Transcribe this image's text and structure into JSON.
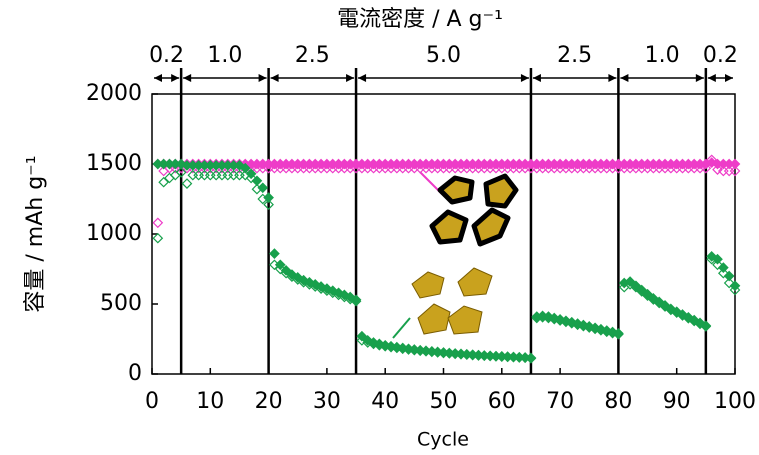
{
  "chart_data": {
    "type": "scatter",
    "title": "電流密度 / A g⁻¹",
    "x_label": "Cycle",
    "y_label": "容量 / mAh g⁻¹",
    "xlim": [
      0,
      100
    ],
    "xticks": [
      0,
      10,
      20,
      30,
      40,
      50,
      60,
      70,
      80,
      90,
      100
    ],
    "ylim": [
      0,
      2000
    ],
    "yticks": [
      0,
      500,
      1000,
      1500,
      2000
    ],
    "regions": [
      {
        "label": "0.2",
        "start": 0,
        "end": 5
      },
      {
        "label": "1.0",
        "start": 5,
        "end": 20
      },
      {
        "label": "2.5",
        "start": 20,
        "end": 35
      },
      {
        "label": "5.0",
        "start": 35,
        "end": 65
      },
      {
        "label": "2.5",
        "start": 65,
        "end": 80
      },
      {
        "label": "1.0",
        "start": 80,
        "end": 95
      },
      {
        "label": "0.2",
        "start": 95,
        "end": 100
      }
    ],
    "x": [
      1,
      2,
      3,
      4,
      5,
      6,
      7,
      8,
      9,
      10,
      11,
      12,
      13,
      14,
      15,
      16,
      17,
      18,
      19,
      20,
      21,
      22,
      23,
      24,
      25,
      26,
      27,
      28,
      29,
      30,
      31,
      32,
      33,
      34,
      35,
      36,
      37,
      38,
      39,
      40,
      41,
      42,
      43,
      44,
      45,
      46,
      47,
      48,
      49,
      50,
      51,
      52,
      53,
      54,
      55,
      56,
      57,
      58,
      59,
      60,
      61,
      62,
      63,
      64,
      65,
      66,
      67,
      68,
      69,
      70,
      71,
      72,
      73,
      74,
      75,
      76,
      77,
      78,
      79,
      80,
      81,
      82,
      83,
      84,
      85,
      86,
      87,
      88,
      89,
      90,
      91,
      92,
      93,
      94,
      95,
      96,
      97,
      98,
      99,
      100
    ],
    "series": [
      {
        "color": "#ee3cc8",
        "marker": "diamond",
        "filled": false,
        "values": [
          1080,
          1450,
          1470,
          1470,
          1470,
          1470,
          1470,
          1470,
          1470,
          1470,
          1470,
          1470,
          1470,
          1470,
          1470,
          1470,
          1470,
          1470,
          1470,
          1470,
          1470,
          1470,
          1470,
          1470,
          1470,
          1470,
          1470,
          1470,
          1470,
          1470,
          1470,
          1470,
          1470,
          1470,
          1470,
          1470,
          1470,
          1470,
          1470,
          1470,
          1470,
          1470,
          1470,
          1470,
          1470,
          1470,
          1470,
          1470,
          1470,
          1470,
          1470,
          1470,
          1470,
          1470,
          1470,
          1470,
          1470,
          1470,
          1470,
          1470,
          1470,
          1470,
          1470,
          1470,
          1470,
          1470,
          1470,
          1470,
          1470,
          1470,
          1470,
          1470,
          1470,
          1470,
          1470,
          1470,
          1470,
          1470,
          1470,
          1470,
          1470,
          1470,
          1470,
          1470,
          1470,
          1470,
          1470,
          1470,
          1470,
          1470,
          1470,
          1470,
          1470,
          1470,
          1470,
          1530,
          1460,
          1450,
          1450,
          1450
        ]
      },
      {
        "color": "#ee3cc8",
        "marker": "diamond",
        "filled": true,
        "values": [
          1500,
          1500,
          1500,
          1500,
          1500,
          1500,
          1500,
          1500,
          1500,
          1500,
          1500,
          1500,
          1500,
          1500,
          1500,
          1500,
          1500,
          1500,
          1500,
          1500,
          1500,
          1500,
          1500,
          1500,
          1500,
          1500,
          1500,
          1500,
          1500,
          1500,
          1500,
          1500,
          1500,
          1500,
          1500,
          1500,
          1500,
          1500,
          1500,
          1500,
          1500,
          1500,
          1500,
          1500,
          1500,
          1500,
          1500,
          1500,
          1500,
          1500,
          1500,
          1500,
          1500,
          1500,
          1500,
          1500,
          1500,
          1500,
          1500,
          1500,
          1500,
          1500,
          1500,
          1500,
          1500,
          1500,
          1500,
          1500,
          1500,
          1500,
          1500,
          1500,
          1500,
          1500,
          1500,
          1500,
          1500,
          1500,
          1500,
          1500,
          1500,
          1500,
          1500,
          1500,
          1500,
          1500,
          1500,
          1500,
          1500,
          1500,
          1500,
          1500,
          1500,
          1500,
          1500,
          1510,
          1500,
          1500,
          1500,
          1500
        ]
      },
      {
        "color": "#18a04c",
        "marker": "diamond",
        "filled": false,
        "values": [
          970,
          1370,
          1400,
          1420,
          1440,
          1360,
          1420,
          1420,
          1420,
          1420,
          1420,
          1420,
          1420,
          1420,
          1420,
          1420,
          1400,
          1320,
          1250,
          1210,
          780,
          750,
          720,
          695,
          675,
          655,
          640,
          625,
          610,
          595,
          580,
          565,
          550,
          535,
          520,
          240,
          225,
          215,
          205,
          198,
          192,
          186,
          180,
          175,
          170,
          166,
          162,
          158,
          154,
          150,
          147,
          144,
          141,
          138,
          135,
          132,
          130,
          128,
          126,
          124,
          122,
          120,
          118,
          116,
          112,
          400,
          405,
          400,
          392,
          382,
          372,
          362,
          352,
          342,
          332,
          322,
          312,
          302,
          292,
          284,
          620,
          640,
          620,
          590,
          560,
          532,
          507,
          482,
          458,
          438,
          418,
          398,
          378,
          358,
          340,
          820,
          780,
          720,
          650,
          600
        ]
      },
      {
        "color": "#18a04c",
        "marker": "diamond",
        "filled": true,
        "values": [
          1500,
          1500,
          1500,
          1500,
          1500,
          1490,
          1490,
          1490,
          1490,
          1490,
          1490,
          1490,
          1490,
          1490,
          1490,
          1470,
          1430,
          1380,
          1330,
          1260,
          860,
          780,
          740,
          710,
          690,
          670,
          655,
          640,
          625,
          610,
          595,
          580,
          565,
          550,
          530,
          270,
          240,
          225,
          215,
          205,
          198,
          192,
          186,
          180,
          175,
          170,
          166,
          162,
          158,
          154,
          150,
          147,
          144,
          141,
          138,
          135,
          132,
          130,
          128,
          126,
          124,
          122,
          120,
          118,
          115,
          410,
          415,
          410,
          400,
          390,
          380,
          370,
          360,
          350,
          340,
          330,
          320,
          310,
          300,
          290,
          650,
          660,
          630,
          600,
          570,
          540,
          515,
          490,
          465,
          445,
          425,
          405,
          385,
          365,
          345,
          840,
          820,
          760,
          700,
          630
        ]
      }
    ]
  }
}
